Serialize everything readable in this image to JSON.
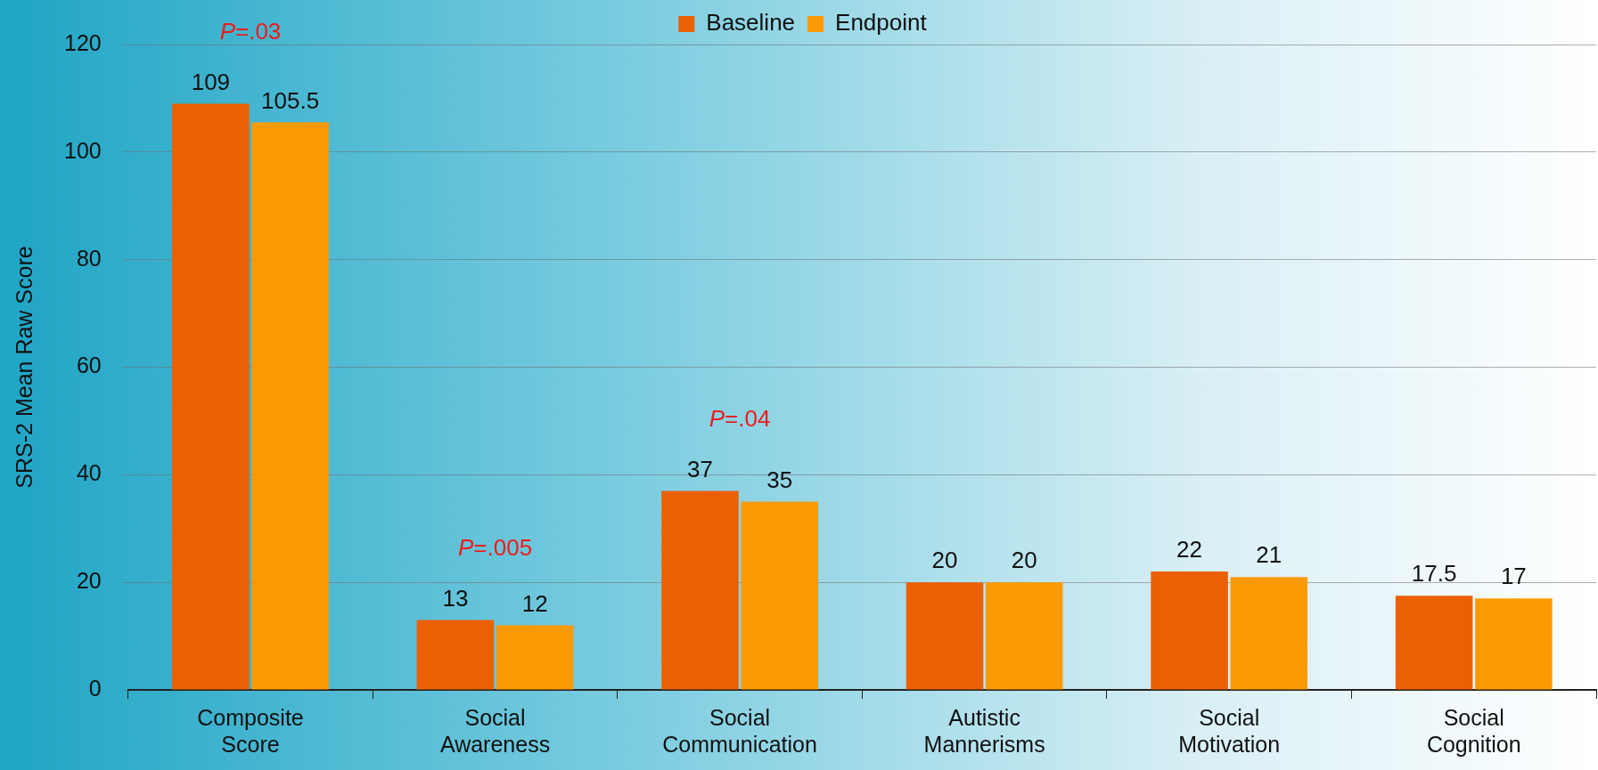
{
  "chart_data": {
    "type": "bar",
    "ylabel": "SRS-2 Mean Raw Score",
    "categories": [
      "Composite Score",
      "Social Awareness",
      "Social Communication",
      "Autistic Mannerisms",
      "Social Motivation",
      "Social Cognition"
    ],
    "series": [
      {
        "name": "Baseline",
        "color": "#ec6004",
        "values": [
          109,
          13,
          37,
          20,
          22,
          17.5
        ]
      },
      {
        "name": "Endpoint",
        "color": "#fc9a04",
        "values": [
          105.5,
          12,
          35,
          20,
          21,
          17
        ]
      }
    ],
    "ylim": [
      0,
      120
    ],
    "yticks": [
      0,
      20,
      40,
      60,
      80,
      100,
      120
    ],
    "grid": "y",
    "legend": "top",
    "data_labels": true,
    "annotations": [
      "P=.03",
      "P=.005",
      "P=.04"
    ]
  }
}
